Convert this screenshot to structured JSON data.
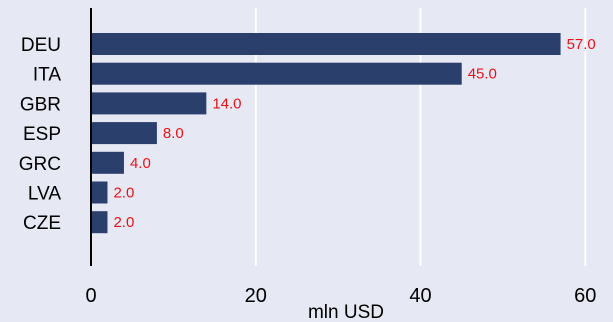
{
  "chart_data": {
    "type": "bar",
    "orientation": "horizontal",
    "categories": [
      "DEU",
      "ITA",
      "GBR",
      "ESP",
      "GRC",
      "LVA",
      "CZE"
    ],
    "values": [
      57.0,
      45.0,
      14.0,
      8.0,
      4.0,
      2.0,
      2.0
    ],
    "data_labels": [
      "57.0",
      "45.0",
      "14.0",
      "8.0",
      "4.0",
      "2.0",
      "2.0"
    ],
    "xlabel": "mln USD",
    "xlim": [
      0,
      63
    ],
    "xticks": [
      0,
      20,
      40,
      60
    ],
    "grid": true,
    "colors": {
      "background": "#e6e9f3",
      "bar": "#2b3f6c",
      "data_label": "#e8131a",
      "grid": "#ffffff",
      "axis": "#000000"
    }
  }
}
